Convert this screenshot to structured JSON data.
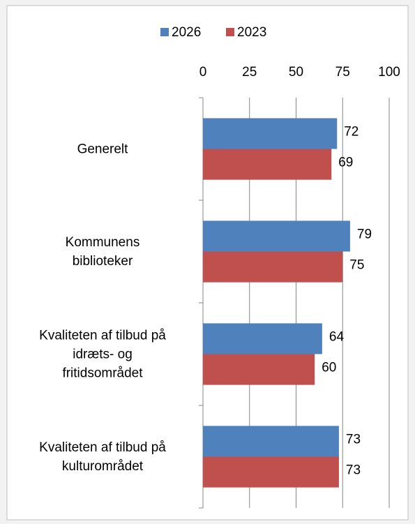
{
  "chart_data": {
    "type": "bar",
    "orientation": "horizontal",
    "categories": [
      "Generelt",
      "Kommunens\nbiblioteker",
      "Kvaliteten af tilbud på\nidræts- og\nfritidsområdet",
      "Kvaliteten af tilbud på\nkulturområdet"
    ],
    "series": [
      {
        "name": "2026",
        "color": "#4f81bd",
        "values": [
          72,
          79,
          64,
          73
        ]
      },
      {
        "name": "2023",
        "color": "#c0504d",
        "values": [
          69,
          75,
          60,
          73
        ]
      }
    ],
    "xlim": [
      0,
      100
    ],
    "xticks": [
      0,
      25,
      50,
      75,
      100
    ],
    "grid": true,
    "legend": "top"
  }
}
